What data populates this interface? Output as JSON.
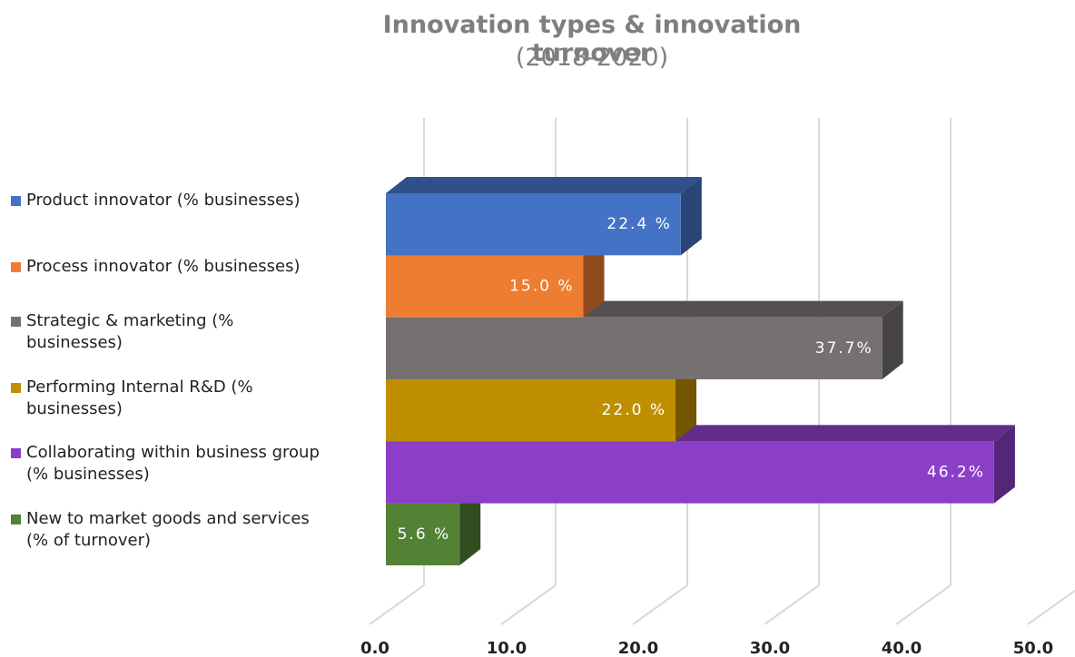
{
  "chart_data": {
    "type": "bar3d",
    "orientation": "horizontal",
    "title": "Innovation types & innovation turnover",
    "subtitle": "(2018-2020)",
    "series": [
      {
        "name": "Product innovator (% businesses)",
        "color": "#4472c4",
        "values": [
          22.4
        ],
        "value_labels": [
          "22.4 %"
        ]
      },
      {
        "name": "Process innovator (% businesses)",
        "color": "#ed7d31",
        "values": [
          15.0
        ],
        "value_labels": [
          "15.0 %"
        ]
      },
      {
        "name": "Strategic & marketing (% businesses)",
        "color": "#767171",
        "values": [
          37.7
        ],
        "value_labels": [
          "37.7%"
        ]
      },
      {
        "name": "Performing Internal R&D (% businesses)",
        "color": "#bf8f00",
        "values": [
          22.0
        ],
        "value_labels": [
          "22.0 %"
        ]
      },
      {
        "name": "Collaborating within business group (% businesses)",
        "color": "#8b3fc8",
        "values": [
          46.2
        ],
        "value_labels": [
          "46.2%"
        ]
      },
      {
        "name": "New to market goods and services (% of turnover)",
        "color": "#548235",
        "values": [
          5.6
        ],
        "value_labels": [
          "5.6 %"
        ]
      }
    ],
    "xlim": [
      0,
      50
    ],
    "xticks": [
      {
        "value": 0,
        "label": "0.0"
      },
      {
        "value": 10,
        "label": "10.0"
      },
      {
        "value": 20,
        "label": "20.0"
      },
      {
        "value": 30,
        "label": "30.0"
      },
      {
        "value": 40,
        "label": "40.0"
      },
      {
        "value": 50,
        "label": "50.0"
      }
    ],
    "grid": true,
    "legend": "left"
  }
}
